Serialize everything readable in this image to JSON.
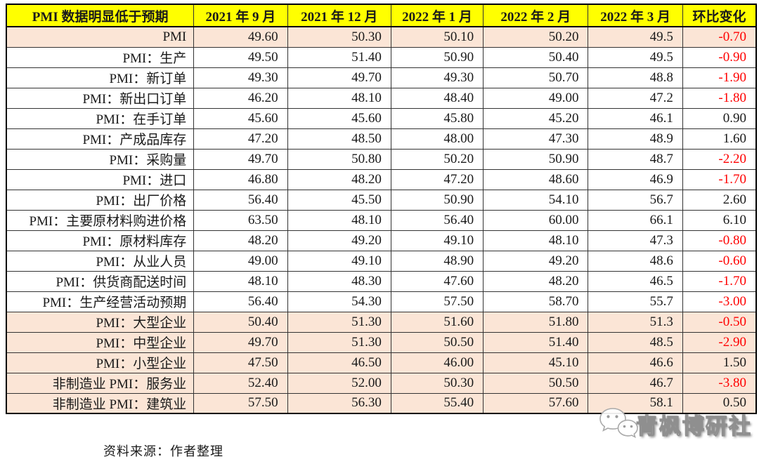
{
  "table": {
    "headers": [
      "PMI 数据明显低于预期",
      "2021 年 9 月",
      "2021 年 12 月",
      "2022 年 1 月",
      "2022 年 2 月",
      "2022 年 3 月",
      "环比变化"
    ],
    "rows": [
      {
        "label": "PMI",
        "values": [
          "49.60",
          "50.30",
          "50.10",
          "50.20",
          "49.5"
        ],
        "change": "-0.70",
        "highlighted": true
      },
      {
        "label": "PMI：生产",
        "values": [
          "49.50",
          "51.40",
          "50.90",
          "50.40",
          "49.5"
        ],
        "change": "-0.90",
        "highlighted": false
      },
      {
        "label": "PMI：新订单",
        "values": [
          "49.30",
          "49.70",
          "49.30",
          "50.70",
          "48.8"
        ],
        "change": "-1.90",
        "highlighted": false
      },
      {
        "label": "PMI：新出口订单",
        "values": [
          "46.20",
          "48.10",
          "48.40",
          "49.00",
          "47.2"
        ],
        "change": "-1.80",
        "highlighted": false
      },
      {
        "label": "PMI：在手订单",
        "values": [
          "45.60",
          "45.60",
          "45.80",
          "45.20",
          "46.1"
        ],
        "change": "0.90",
        "highlighted": false
      },
      {
        "label": "PMI：产成品库存",
        "values": [
          "47.20",
          "48.50",
          "48.00",
          "47.30",
          "48.9"
        ],
        "change": "1.60",
        "highlighted": false
      },
      {
        "label": "PMI：采购量",
        "values": [
          "49.70",
          "50.80",
          "50.20",
          "50.90",
          "48.7"
        ],
        "change": "-2.20",
        "highlighted": false
      },
      {
        "label": "PMI：进口",
        "values": [
          "46.80",
          "48.20",
          "47.20",
          "48.60",
          "46.9"
        ],
        "change": "-1.70",
        "highlighted": false
      },
      {
        "label": "PMI：出厂价格",
        "values": [
          "56.40",
          "45.50",
          "50.90",
          "54.10",
          "56.7"
        ],
        "change": "2.60",
        "highlighted": false
      },
      {
        "label": "PMI：主要原材料购进价格",
        "values": [
          "63.50",
          "48.10",
          "56.40",
          "60.00",
          "66.1"
        ],
        "change": "6.10",
        "highlighted": false
      },
      {
        "label": "PMI：原材料库存",
        "values": [
          "48.20",
          "49.20",
          "49.10",
          "48.10",
          "47.3"
        ],
        "change": "-0.80",
        "highlighted": false
      },
      {
        "label": "PMI：从业人员",
        "values": [
          "49.00",
          "49.10",
          "48.90",
          "49.20",
          "48.6"
        ],
        "change": "-0.60",
        "highlighted": false
      },
      {
        "label": "PMI：供货商配送时间",
        "values": [
          "48.10",
          "48.30",
          "47.60",
          "48.20",
          "46.5"
        ],
        "change": "-1.70",
        "highlighted": false
      },
      {
        "label": "PMI：生产经营活动预期",
        "values": [
          "56.40",
          "54.30",
          "57.50",
          "58.70",
          "55.7"
        ],
        "change": "-3.00",
        "highlighted": false
      },
      {
        "label": "PMI：大型企业",
        "values": [
          "50.40",
          "51.30",
          "51.60",
          "51.80",
          "51.3"
        ],
        "change": "-0.50",
        "highlighted": true
      },
      {
        "label": "PMI：中型企业",
        "values": [
          "49.70",
          "51.30",
          "50.50",
          "51.40",
          "48.5"
        ],
        "change": "-2.90",
        "highlighted": true
      },
      {
        "label": "PMI：小型企业",
        "values": [
          "47.50",
          "46.50",
          "46.00",
          "45.10",
          "46.6"
        ],
        "change": "1.50",
        "highlighted": true
      },
      {
        "label": "非制造业 PMI：服务业",
        "values": [
          "52.40",
          "52.00",
          "50.30",
          "50.50",
          "46.7"
        ],
        "change": "-3.80",
        "highlighted": true
      },
      {
        "label": "非制造业 PMI：建筑业",
        "values": [
          "57.50",
          "56.30",
          "55.40",
          "57.60",
          "58.1"
        ],
        "change": "0.50",
        "highlighted": true
      }
    ]
  },
  "footer": {
    "source": "资料来源：作者整理"
  },
  "watermark": {
    "text": "青枫博研社",
    "icon": "wechat-icon"
  },
  "colors": {
    "header_bg": "#FFFF00",
    "highlight_bg": "#FBE5D6",
    "negative": "#FF0000",
    "text": "#1A1A1A"
  }
}
